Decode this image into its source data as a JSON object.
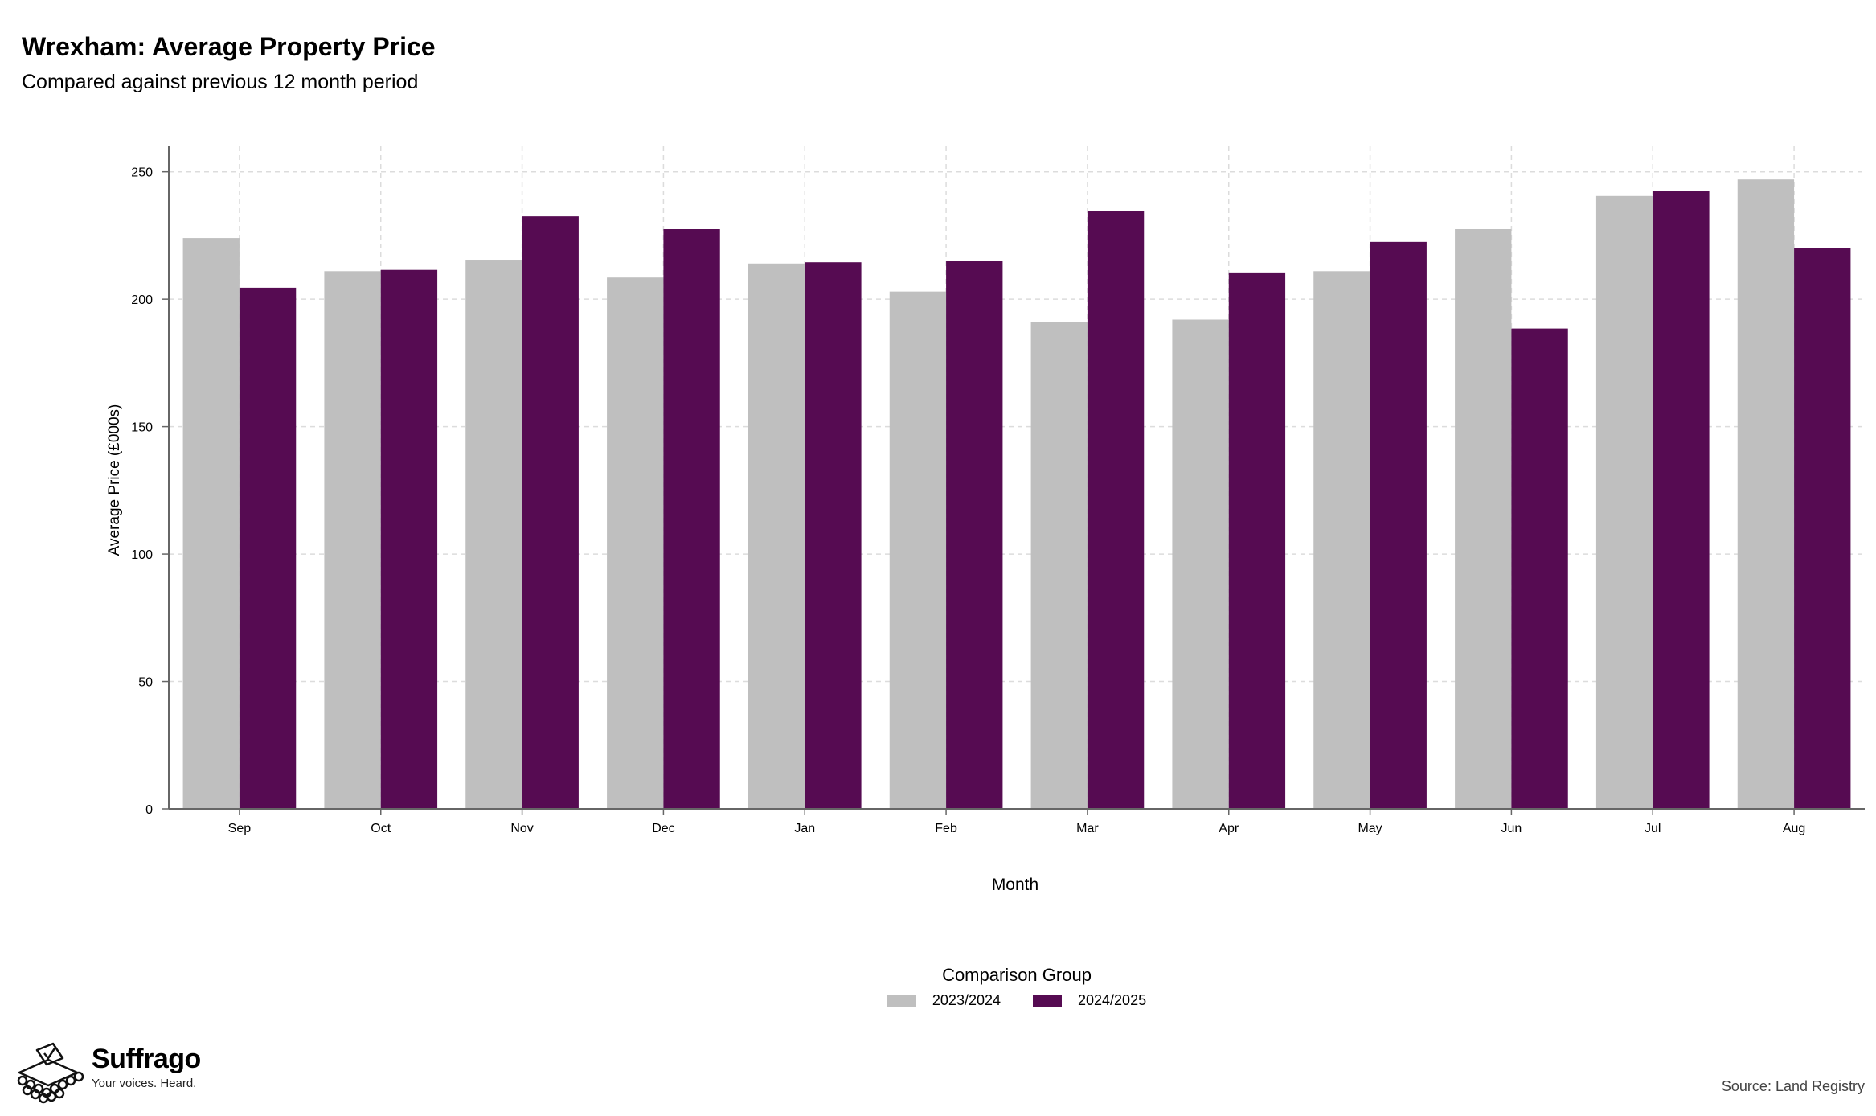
{
  "header": {
    "title": "Wrexham: Average Property Price",
    "subtitle": "Compared against previous 12 month period"
  },
  "chart_data": {
    "type": "bar",
    "xlabel": "Month",
    "ylabel": "Average Price (£000s)",
    "ylim": [
      0,
      260
    ],
    "yticks": [
      0,
      50,
      100,
      150,
      200,
      250
    ],
    "grid": true,
    "categories": [
      "Sep",
      "Oct",
      "Nov",
      "Dec",
      "Jan",
      "Feb",
      "Mar",
      "Apr",
      "May",
      "Jun",
      "Jul",
      "Aug"
    ],
    "series": [
      {
        "name": "2023/2024",
        "color": "#bfbfbf",
        "values": [
          224,
          211,
          215.5,
          208.5,
          214,
          203,
          191,
          192,
          211,
          227.5,
          240.5,
          247
        ]
      },
      {
        "name": "2024/2025",
        "color": "#560b52",
        "values": [
          204.5,
          211.5,
          232.5,
          227.5,
          214.5,
          215,
          234.5,
          210.5,
          222.5,
          188.5,
          242.5,
          220
        ]
      }
    ],
    "legend": {
      "title": "Comparison Group",
      "placement": "bottom-center"
    }
  },
  "branding": {
    "name": "Suffrago",
    "tagline": "Your voices. Heard."
  },
  "footer": {
    "source": "Source: Land Registry"
  }
}
